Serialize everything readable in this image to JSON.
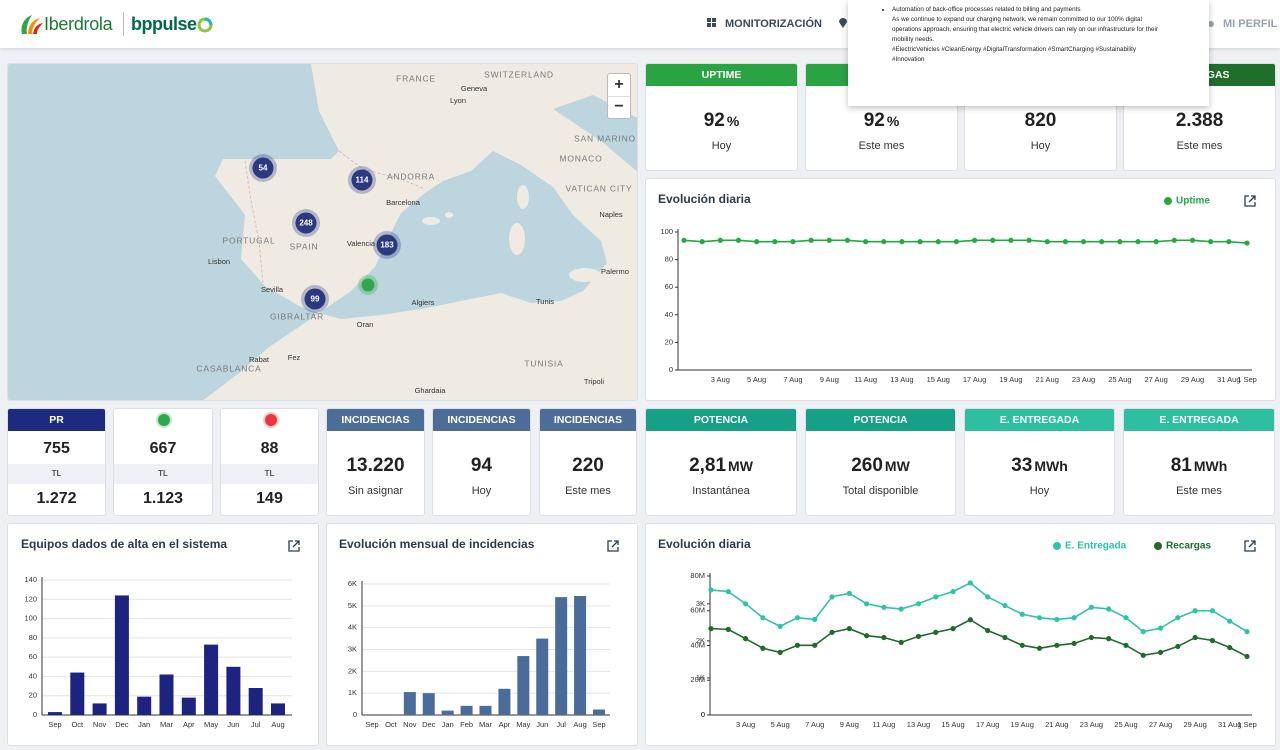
{
  "header": {
    "brand": "Iberdrola",
    "partner": "bppulse",
    "nav": [
      "MONITORIZACIÓN",
      "MI PERFIL"
    ]
  },
  "popup": {
    "bullet": "Automation of back-office processes related to billing and payments",
    "text": "As we continue to expand our charging network, we remain committed to our 100% digital operations approach, ensuring that electric vehicle drivers can rely on our infrastructure for their mobility needs.",
    "tags": "#ElectricVehicles #CleanEnergy #DigitalTransformation #SmartCharging #Sustainability #Innovation"
  },
  "map": {
    "labels": [
      "FRANCE",
      "SWITZERLAND",
      "Geneva",
      "Lyon",
      "SAN MARINO",
      "MONACO",
      "VATICAN CITY",
      "ANDORRA",
      "Barcelona",
      "Naples",
      "PORTUGAL",
      "SPAIN",
      "Valencia",
      "Lisbon",
      "Sevilla",
      "GIBRALTAR",
      "Algiers",
      "Tunis",
      "Palermo",
      "Oran",
      "Rabat",
      "Fez",
      "CASABLANCA",
      "TUNISIA",
      "Ghardaia",
      "Tripoli"
    ],
    "clusters": [
      54,
      114,
      248,
      183,
      99
    ],
    "cluster_color": "#2b3a80",
    "zoom": [
      "+",
      "−"
    ]
  },
  "kpis_top": [
    {
      "title": "UPTIME",
      "color": "#2aa343",
      "value": "92",
      "unit": "%",
      "caption": "Hoy"
    },
    {
      "color": "#2aa343",
      "value": "92",
      "unit": "%",
      "caption": "Este mes"
    },
    {
      "color": "#1f7a33",
      "value": "820",
      "caption": "Hoy"
    },
    {
      "title": "RECARGAS",
      "color": "#1f6e2c",
      "value": "2.388",
      "caption": "Este mes"
    }
  ],
  "status": [
    {
      "title": "PR",
      "color": "#1c2a80",
      "value": "755",
      "sub": "TL",
      "total": "1.272"
    },
    {
      "dot": "#2ea84a",
      "value": "667",
      "sub": "TL",
      "total": "1.123"
    },
    {
      "dot": "#e8383d",
      "value": "88",
      "sub": "TL",
      "total": "149"
    }
  ],
  "kpis": [
    {
      "title": "INCIDENCIAS",
      "color": "#4d6d99",
      "value": "13.220",
      "caption": "Sin asignar"
    },
    {
      "title": "INCIDENCIAS",
      "color": "#4d6d99",
      "value": "94",
      "caption": "Hoy"
    },
    {
      "title": "INCIDENCIAS",
      "color": "#4d6d99",
      "value": "220",
      "caption": "Este mes"
    },
    {
      "title": "POTENCIA",
      "color": "#16a085",
      "value": "2,81",
      "unit": "MW",
      "caption": "Instantánea"
    },
    {
      "title": "POTENCIA",
      "color": "#16a085",
      "value": "260",
      "unit": "MW",
      "caption": "Total disponible"
    },
    {
      "title": "E. ENTREGADA",
      "color": "#2cc0a0",
      "value": "33",
      "unit": "MWh",
      "caption": "Hoy"
    },
    {
      "title": "E. ENTREGADA",
      "color": "#2cc0a0",
      "value": "81",
      "unit": "MWh",
      "caption": "Este mes"
    }
  ],
  "charts": {
    "uptime": {
      "type": "line",
      "title": "Evolución diaria",
      "categories": [
        null,
        null,
        "3 Aug",
        null,
        "5 Aug",
        null,
        "7 Aug",
        null,
        "9 Aug",
        null,
        "11 Aug",
        null,
        "13 Aug",
        null,
        "15 Aug",
        null,
        "17 Aug",
        null,
        "19 Aug",
        null,
        "21 Aug",
        null,
        "23 Aug",
        null,
        "25 Aug",
        null,
        "27 Aug",
        null,
        "29 Aug",
        null,
        "31 Aug",
        "1 Sep"
      ],
      "series": [
        {
          "name": "Uptime",
          "color": "#27a844",
          "values": [
            94,
            93,
            94,
            94,
            93,
            93,
            93,
            94,
            94,
            94,
            93,
            93,
            93,
            93,
            93,
            93,
            94,
            94,
            94,
            94,
            93,
            93,
            93,
            93,
            93,
            93,
            93,
            94,
            94,
            93,
            93,
            92
          ]
        }
      ],
      "ylim": [
        0,
        100
      ],
      "yticks": [
        0,
        20,
        40,
        60,
        80,
        100
      ],
      "grid": false
    },
    "equipos": {
      "type": "bar",
      "title": "Equipos dados de alta en el sistema",
      "categories": [
        "Sep",
        "Oct",
        "Nov",
        "Dec",
        "Jan",
        "Mar",
        "Apr",
        "May",
        "Jun",
        "Jul",
        "Aug"
      ],
      "values": [
        3,
        44,
        12,
        124,
        19,
        42,
        18,
        73,
        50,
        28,
        12
      ],
      "color": "#1c2380",
      "ylim": [
        0,
        140
      ],
      "yticks": [
        0,
        20,
        40,
        60,
        80,
        100,
        120,
        140
      ],
      "grid": true
    },
    "incidencias": {
      "type": "bar",
      "title": "Evolución mensual de incidencias",
      "categories": [
        "Sep",
        "Oct",
        "Nov",
        "Dec",
        "Jan",
        "Feb",
        "Mar",
        "Apr",
        "May",
        "Jun",
        "Jul",
        "Aug",
        "Sep"
      ],
      "values": [
        0,
        0,
        1050,
        1000,
        200,
        420,
        420,
        1200,
        2700,
        3500,
        5400,
        5450,
        250
      ],
      "color": "#4a6c9b",
      "ylim": [
        0,
        6000
      ],
      "yticks": [
        0,
        {
          "value": 1000,
          "label": "1K"
        },
        {
          "value": 2000,
          "label": "2K"
        },
        {
          "value": 3000,
          "label": "3K"
        },
        {
          "value": 4000,
          "label": "4K"
        },
        {
          "value": 5000,
          "label": "5K"
        },
        {
          "value": 6000,
          "label": "6K"
        }
      ],
      "grid": true
    },
    "energia": {
      "type": "line",
      "title": "Evolución diaria",
      "categories": [
        null,
        null,
        "3 Aug",
        null,
        "5 Aug",
        null,
        "7 Aug",
        null,
        "9 Aug",
        null,
        "11 Aug",
        null,
        "13 Aug",
        null,
        "15 Aug",
        null,
        "17 Aug",
        null,
        "19 Aug",
        null,
        "21 Aug",
        null,
        "23 Aug",
        null,
        "25 Aug",
        null,
        "27 Aug",
        null,
        "29 Aug",
        null,
        "31 Aug",
        "1 Sep"
      ],
      "series": [
        {
          "name": "E. Entregada",
          "color": "#2ec4a6",
          "values": [
            72000000,
            71000000,
            64000000,
            56000000,
            51000000,
            56000000,
            55000000,
            68000000,
            70000000,
            64000000,
            62000000,
            61000000,
            64000000,
            68000000,
            71000000,
            76000000,
            68000000,
            63000000,
            58000000,
            56000000,
            55000000,
            56000000,
            62000000,
            61000000,
            56000000,
            48000000,
            50000000,
            56000000,
            60000000,
            60000000,
            54000000,
            48000000
          ]
        },
        {
          "name": "Recargas",
          "color": "#1e6b2b",
          "axis": "y2",
          "values": [
            2330,
            2310,
            2060,
            1800,
            1690,
            1880,
            1880,
            2230,
            2330,
            2140,
            2090,
            1960,
            2120,
            2230,
            2330,
            2570,
            2280,
            2090,
            1880,
            1800,
            1880,
            1930,
            2090,
            2060,
            1880,
            1610,
            1690,
            1850,
            2090,
            2010,
            1820,
            1580
          ]
        }
      ],
      "ylim": [
        0,
        80000000
      ],
      "yticks": [
        0,
        {
          "value": 20000000,
          "label": "20M"
        },
        {
          "value": 40000000,
          "label": "40M"
        },
        {
          "value": 60000000,
          "label": "60M"
        },
        {
          "value": 80000000,
          "label": "80M"
        }
      ],
      "y2lim": [
        0,
        3750
      ],
      "y2ticks": [
        0,
        {
          "value": 1000,
          "label": "1K"
        },
        {
          "value": 2000,
          "label": "2K"
        },
        {
          "value": 3000,
          "label": "3K"
        }
      ],
      "grid": false
    }
  }
}
